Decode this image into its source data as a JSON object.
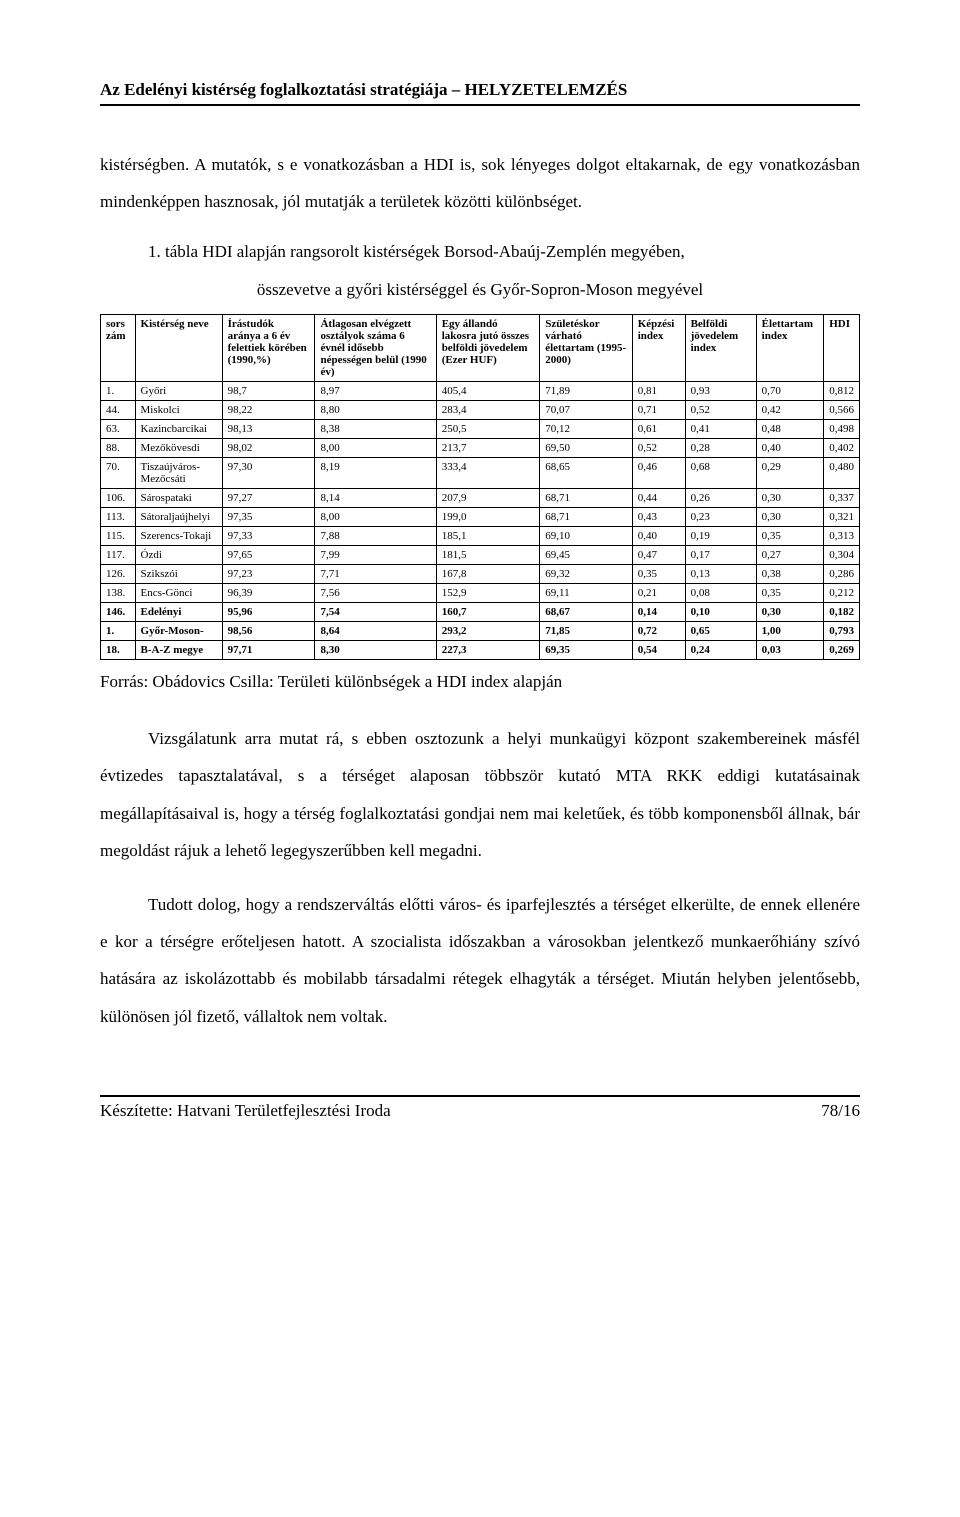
{
  "header": "Az Edelényi kistérség foglalkoztatási stratégiája – HELYZETELEMZÉS",
  "intro_para": "kistérségben. A mutatók, s e vonatkozásban a HDI is, sok lényeges dolgot eltakarnak, de egy vonatkozásban mindenképpen hasznosak, jól mutatják a területek közötti különbséget.",
  "table_caption_l1": "1. tábla  HDI alapján rangsorolt kistérségek Borsod-Abaúj-Zemplén megyében,",
  "table_caption_l2": "összevetve a győri kistérséggel és Győr-Sopron-Moson megyével",
  "table": {
    "headers": [
      "sors zám",
      "Kistérség neve",
      "Írástudók aránya a 6 év felettiek körében (1990,%)",
      "Átlagosan elvégzett osztályok száma 6 évnél idősebb népességen belül (1990 év)",
      "Egy állandó lakosra jutó összes belföldi jövedelem (Ezer HUF)",
      "Születéskor várható élettartam (1995-2000)",
      "Képzési index",
      "Belföldi jövedelem index",
      "Élettartam index",
      "HDI"
    ],
    "rows": [
      {
        "bold": false,
        "cells": [
          "1.",
          "Győri",
          "98,7",
          "8,97",
          "405,4",
          "71,89",
          "0,81",
          "0,93",
          "0,70",
          "0,812"
        ]
      },
      {
        "bold": false,
        "cells": [
          "44.",
          "Miskolci",
          "98,22",
          "8,80",
          "283,4",
          "70,07",
          "0,71",
          "0,52",
          "0,42",
          "0,566"
        ]
      },
      {
        "bold": false,
        "cells": [
          "63.",
          "Kazincbarcikai",
          "98,13",
          "8,38",
          "250,5",
          "70,12",
          "0,61",
          "0,41",
          "0,48",
          "0,498"
        ]
      },
      {
        "bold": false,
        "cells": [
          "88.",
          "Mezőkövesdi",
          "98,02",
          "8,00",
          "213,7",
          "69,50",
          "0,52",
          "0,28",
          "0,40",
          "0,402"
        ]
      },
      {
        "bold": false,
        "cells": [
          "70.",
          "Tiszaújváros-Mezőcsáti",
          "97,30",
          "8,19",
          "333,4",
          "68,65",
          "0,46",
          "0,68",
          "0,29",
          "0,480"
        ]
      },
      {
        "bold": false,
        "cells": [
          "106.",
          "Sárospataki",
          "97,27",
          "8,14",
          "207,9",
          "68,71",
          "0,44",
          "0,26",
          "0,30",
          "0,337"
        ]
      },
      {
        "bold": false,
        "cells": [
          "113.",
          "Sátoraljaújhelyi",
          "97,35",
          "8,00",
          "199,0",
          "68,71",
          "0,43",
          "0,23",
          "0,30",
          "0,321"
        ]
      },
      {
        "bold": false,
        "cells": [
          "115.",
          "Szerencs-Tokaji",
          "97,33",
          "7,88",
          "185,1",
          "69,10",
          "0,40",
          "0,19",
          "0,35",
          "0,313"
        ]
      },
      {
        "bold": false,
        "cells": [
          "117.",
          "Ózdi",
          "97,65",
          "7,99",
          "181,5",
          "69,45",
          "0,47",
          "0,17",
          "0,27",
          "0,304"
        ]
      },
      {
        "bold": false,
        "cells": [
          "126.",
          "Szikszói",
          "97,23",
          "7,71",
          "167,8",
          "69,32",
          "0,35",
          "0,13",
          "0,38",
          "0,286"
        ]
      },
      {
        "bold": false,
        "cells": [
          "138.",
          "Encs-Gönci",
          "96,39",
          "7,56",
          "152,9",
          "69,11",
          "0,21",
          "0,08",
          "0,35",
          "0,212"
        ]
      },
      {
        "bold": true,
        "cells": [
          "146.",
          "Edelényi",
          "95,96",
          "7,54",
          "160,7",
          "68,67",
          "0,14",
          "0,10",
          "0,30",
          "0,182"
        ]
      },
      {
        "bold": true,
        "cells": [
          "1.",
          "Győr-Moson-",
          "98,56",
          "8,64",
          "293,2",
          "71,85",
          "0,72",
          "0,65",
          "1,00",
          "0,793"
        ]
      },
      {
        "bold": true,
        "cells": [
          "18.",
          "B-A-Z megye",
          "97,71",
          "8,30",
          "227,3",
          "69,35",
          "0,54",
          "0,24",
          "0,03",
          "0,269"
        ]
      }
    ]
  },
  "source_line": "Forrás: Obádovics Csilla: Területi különbségek a HDI index alapján",
  "para2": "Vizsgálatunk arra mutat rá, s ebben osztozunk a helyi munkaügyi központ szakembereinek másfél évtizedes tapasztalatával, s a térséget alaposan többször kutató MTA RKK eddigi kutatásainak megállapításaival is, hogy a térség foglalkoztatási gondjai nem mai keletűek, és több komponensből állnak, bár megoldást rájuk a lehető legegyszerűbben kell megadni.",
  "para3": "Tudott dolog, hogy a rendszerváltás előtti város- és iparfejlesztés a térséget elkerülte, de ennek ellenére e kor a térségre erőteljesen hatott. A szocialista időszakban a városokban jelentkező munkaerőhiány szívó hatására az iskolázottabb és mobilabb társadalmi rétegek elhagyták a térséget. Miután helyben jelentősebb, különösen jól fizető, vállaltok nem voltak.",
  "footer_left": "Készítette: Hatvani Területfejlesztési Iroda",
  "footer_right": "78/16"
}
